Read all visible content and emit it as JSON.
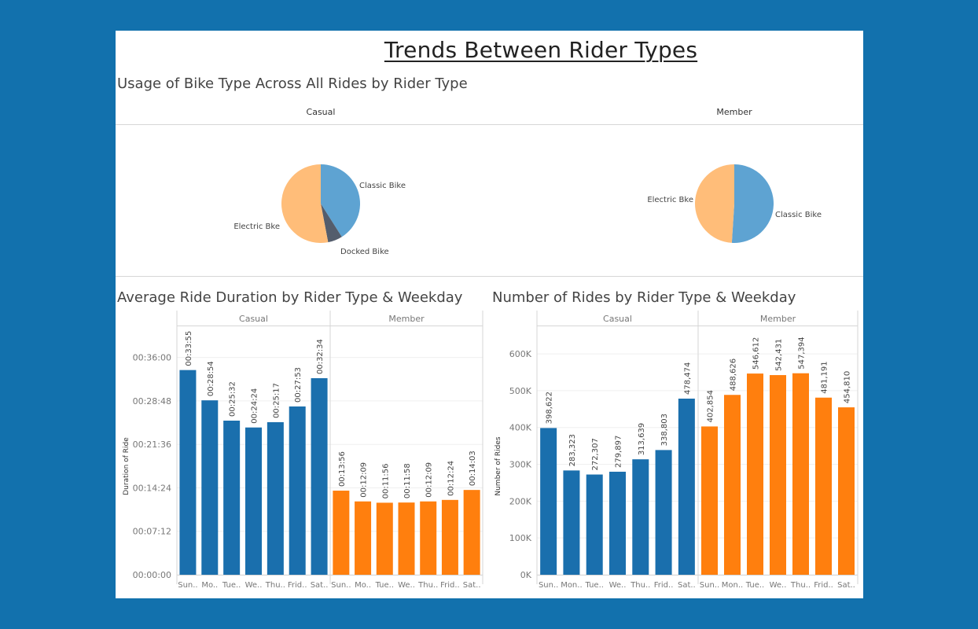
{
  "dashboard": {
    "title": "Trends Between Rider Types",
    "pie_section_title": "Usage of Bike Type Across All Rides by Rider Type",
    "duration_section_title": "Average Ride Duration by Rider Type & Weekday",
    "count_section_title": "Number of Rides by Rider Type & Weekday"
  },
  "colors": {
    "background": "#1271ad",
    "casual_bar": "#1a6fad",
    "member_bar": "#ff7f0e",
    "classic_bike": "#5ea3d2",
    "electric_bike": "#ffbd79",
    "docked_bike": "#545d6c"
  },
  "chart_data": [
    {
      "type": "pie",
      "panel": "Casual",
      "slices": [
        {
          "label": "Classic Bike",
          "value": 41.0,
          "color": "#5ea3d2"
        },
        {
          "label": "Docked Bike",
          "value": 6.0,
          "color": "#545d6c"
        },
        {
          "label": "Electric Bke",
          "value": 53.0,
          "color": "#ffbd79"
        }
      ]
    },
    {
      "type": "pie",
      "panel": "Member",
      "slices": [
        {
          "label": "Classic Bike",
          "value": 51.0,
          "color": "#5ea3d2"
        },
        {
          "label": "Electric Bke",
          "value": 49.0,
          "color": "#ffbd79"
        }
      ]
    },
    {
      "type": "bar",
      "title": "Average Ride Duration by Rider Type & Weekday",
      "ylabel": "Duration of Ride",
      "yticks": [
        "00:00:00",
        "00:07:12",
        "00:14:24",
        "00:21:36",
        "00:28:48",
        "00:36:00"
      ],
      "ylim_seconds": [
        0,
        43200
      ],
      "panels": [
        {
          "name": "Casual",
          "categories": [
            "Sun..",
            "Mo..",
            "Tue..",
            "We..",
            "Thu..",
            "Frid..",
            "Sat.."
          ],
          "labels": [
            "00:33:55",
            "00:28:54",
            "00:25:32",
            "00:24:24",
            "00:25:17",
            "00:27:53",
            "00:32:34"
          ],
          "values_seconds": [
            2035,
            1734,
            1532,
            1464,
            1517,
            1673,
            1954
          ]
        },
        {
          "name": "Member",
          "categories": [
            "Sun..",
            "Mo..",
            "Tue..",
            "We..",
            "Thu..",
            "Frid..",
            "Sat.."
          ],
          "labels": [
            "00:13:56",
            "00:12:09",
            "00:11:56",
            "00:11:58",
            "00:12:09",
            "00:12:24",
            "00:14:03"
          ],
          "values_seconds": [
            836,
            729,
            716,
            718,
            729,
            744,
            843
          ]
        }
      ]
    },
    {
      "type": "bar",
      "title": "Number of Rides by Rider Type & Weekday",
      "ylabel": "Number of Rides",
      "yticks": [
        "0K",
        "100K",
        "200K",
        "300K",
        "400K",
        "500K",
        "600K"
      ],
      "ylim": [
        0,
        675000
      ],
      "panels": [
        {
          "name": "Casual",
          "categories": [
            "Sun..",
            "Mon..",
            "Tue..",
            "We..",
            "Thu..",
            "Frid..",
            "Sat.."
          ],
          "labels": [
            "398,622",
            "283,323",
            "272,307",
            "279,897",
            "313,639",
            "338,803",
            "478,474"
          ],
          "values": [
            398622,
            283323,
            272307,
            279897,
            313639,
            338803,
            478474
          ]
        },
        {
          "name": "Member",
          "categories": [
            "Sun..",
            "Mon..",
            "Tue..",
            "We..",
            "Thu..",
            "Frid..",
            "Sat.."
          ],
          "labels": [
            "402,854",
            "488,626",
            "546,612",
            "542,431",
            "547,394",
            "481,191",
            "454,810"
          ],
          "values": [
            402854,
            488626,
            546612,
            542431,
            547394,
            481191,
            454810
          ]
        }
      ]
    }
  ]
}
